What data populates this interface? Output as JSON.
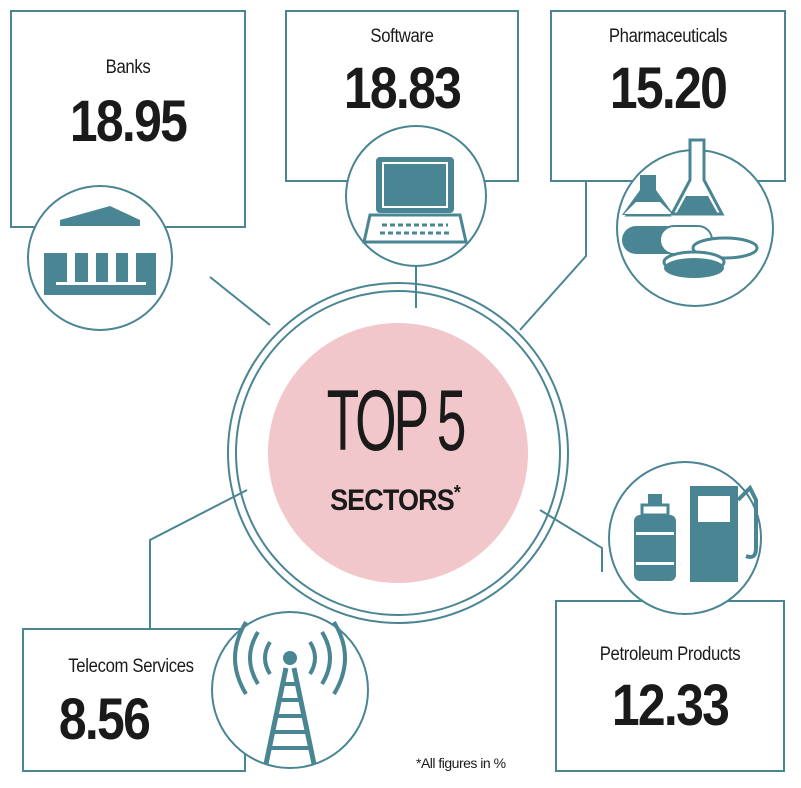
{
  "chart_data": {
    "type": "table",
    "title": "TOP 5",
    "subtitle": "SECTORS",
    "subtitle_mark": "*",
    "note": "*All figures in %",
    "colors": {
      "accent": "#4a8593",
      "center_fill": "#f2c7cb",
      "text": "#1a1a1a"
    },
    "sectors": [
      {
        "name": "Banks",
        "value": "18.95",
        "icon": "bank-icon"
      },
      {
        "name": "Software",
        "value": "18.83",
        "icon": "laptop-icon"
      },
      {
        "name": "Pharmaceuticals",
        "value": "15.20",
        "icon": "pharma-icon"
      },
      {
        "name": "Telecom Services",
        "value": "8.56",
        "icon": "telecom-tower-icon"
      },
      {
        "name": "Petroleum Products",
        "value": "12.33",
        "icon": "fuel-pump-icon"
      }
    ]
  }
}
